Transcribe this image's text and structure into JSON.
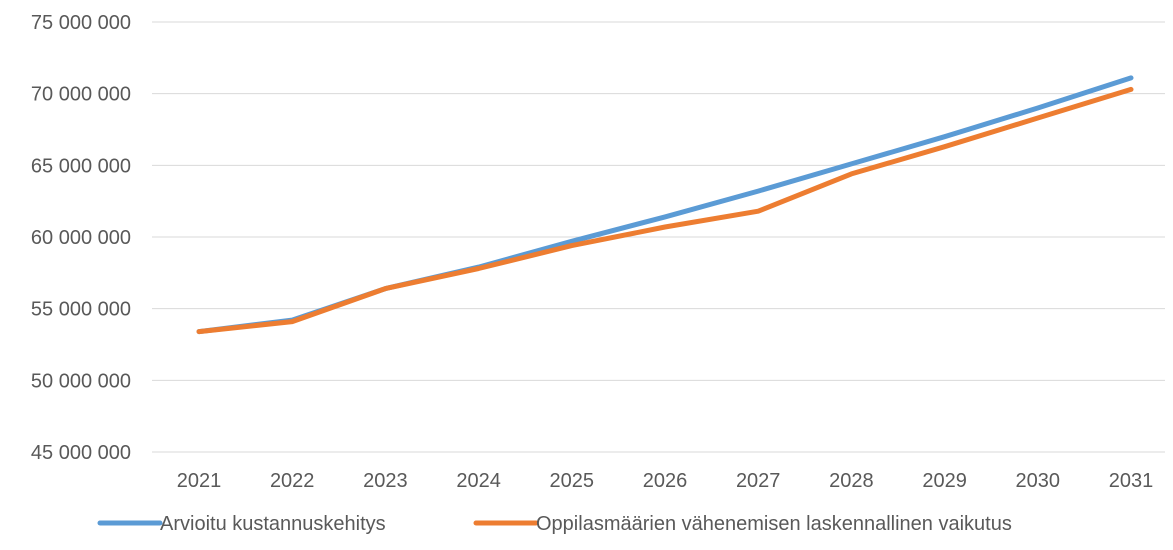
{
  "chart_data": {
    "type": "line",
    "categories": [
      "2021",
      "2022",
      "2023",
      "2024",
      "2025",
      "2026",
      "2027",
      "2028",
      "2029",
      "2030",
      "2031"
    ],
    "ylim": [
      45000000,
      75000000
    ],
    "ytick_values": [
      45000000,
      50000000,
      55000000,
      60000000,
      65000000,
      70000000,
      75000000
    ],
    "ytick_labels": [
      "45 000 000",
      "50 000 000",
      "55 000 000",
      "60 000 000",
      "65 000 000",
      "70 000 000",
      "75 000 000"
    ],
    "grid": true,
    "legend_position": "bottom",
    "series": [
      {
        "name": "Arvioitu kustannuskehitys",
        "color": "#5b9bd5",
        "values": [
          53400000,
          54200000,
          56400000,
          57900000,
          59700000,
          61400000,
          63200000,
          65100000,
          67000000,
          69000000,
          71100000
        ]
      },
      {
        "name": "Oppilasmäärien vähenemisen laskennallinen vaikutus",
        "color": "#ed7d31",
        "values": [
          53400000,
          54100000,
          56400000,
          57800000,
          59400000,
          60700000,
          61800000,
          64400000,
          66300000,
          68300000,
          70300000
        ]
      }
    ]
  }
}
